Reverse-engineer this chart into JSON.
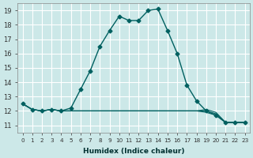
{
  "title": "",
  "xlabel": "Humidex (Indice chaleur)",
  "ylabel": "",
  "background_color": "#cce8e8",
  "grid_color": "#ffffff",
  "line_color": "#006060",
  "xlim": [
    -0.5,
    23.5
  ],
  "ylim": [
    10.5,
    19.5
  ],
  "yticks": [
    11,
    12,
    13,
    14,
    15,
    16,
    17,
    18,
    19
  ],
  "xtick_labels": [
    "0",
    "1",
    "2",
    "3",
    "4",
    "5",
    "6",
    "7",
    "8",
    "9",
    "10",
    "11",
    "12",
    "13",
    "14",
    "15",
    "16",
    "17",
    "18",
    "19",
    "20",
    "21",
    "22",
    "23"
  ],
  "lines": [
    {
      "x": [
        0,
        1,
        2,
        3,
        4,
        5,
        6,
        7,
        8,
        9,
        10,
        11,
        12,
        13,
        14,
        15,
        16,
        17,
        18,
        19,
        20,
        21,
        22,
        23
      ],
      "y": [
        12.5,
        12.1,
        12.0,
        12.1,
        12.0,
        12.2,
        13.5,
        14.8,
        16.5,
        17.6,
        18.6,
        18.3,
        18.3,
        19.0,
        19.1,
        17.6,
        16.0,
        13.8,
        12.7,
        12.0,
        11.7,
        11.2,
        11.2,
        11.2
      ],
      "marker": "D",
      "markersize": 2.5
    },
    {
      "x": [
        0,
        1,
        2,
        3,
        4,
        5,
        6,
        7,
        8,
        9,
        10,
        11,
        12,
        13,
        14,
        15,
        16,
        17,
        18,
        19,
        20,
        21,
        22,
        23
      ],
      "y": [
        12.5,
        12.1,
        12.0,
        12.1,
        12.0,
        12.0,
        12.0,
        12.0,
        12.0,
        12.0,
        12.0,
        12.0,
        12.0,
        12.0,
        12.0,
        12.0,
        12.0,
        12.0,
        12.0,
        11.9,
        11.7,
        11.2,
        11.2,
        11.2
      ],
      "marker": "",
      "markersize": 0
    },
    {
      "x": [
        0,
        1,
        2,
        3,
        4,
        5,
        6,
        7,
        8,
        9,
        10,
        11,
        12,
        13,
        14,
        15,
        16,
        17,
        18,
        19,
        20,
        21,
        22,
        23
      ],
      "y": [
        12.5,
        12.1,
        12.0,
        12.1,
        12.0,
        12.0,
        12.0,
        12.0,
        12.0,
        12.0,
        12.0,
        12.0,
        12.0,
        12.0,
        12.0,
        12.0,
        12.0,
        12.0,
        12.0,
        12.0,
        11.8,
        11.2,
        11.2,
        11.2
      ],
      "marker": "",
      "markersize": 0
    },
    {
      "x": [
        0,
        1,
        2,
        3,
        4,
        5,
        6,
        7,
        8,
        9,
        10,
        11,
        12,
        13,
        14,
        15,
        16,
        17,
        18,
        19,
        20,
        21,
        22,
        23
      ],
      "y": [
        12.5,
        12.1,
        12.0,
        12.1,
        12.0,
        12.0,
        12.0,
        12.0,
        12.0,
        12.0,
        12.0,
        12.0,
        12.0,
        12.0,
        12.0,
        12.0,
        12.0,
        12.0,
        12.0,
        12.1,
        11.9,
        11.2,
        11.2,
        11.2
      ],
      "marker": "",
      "markersize": 0
    }
  ]
}
